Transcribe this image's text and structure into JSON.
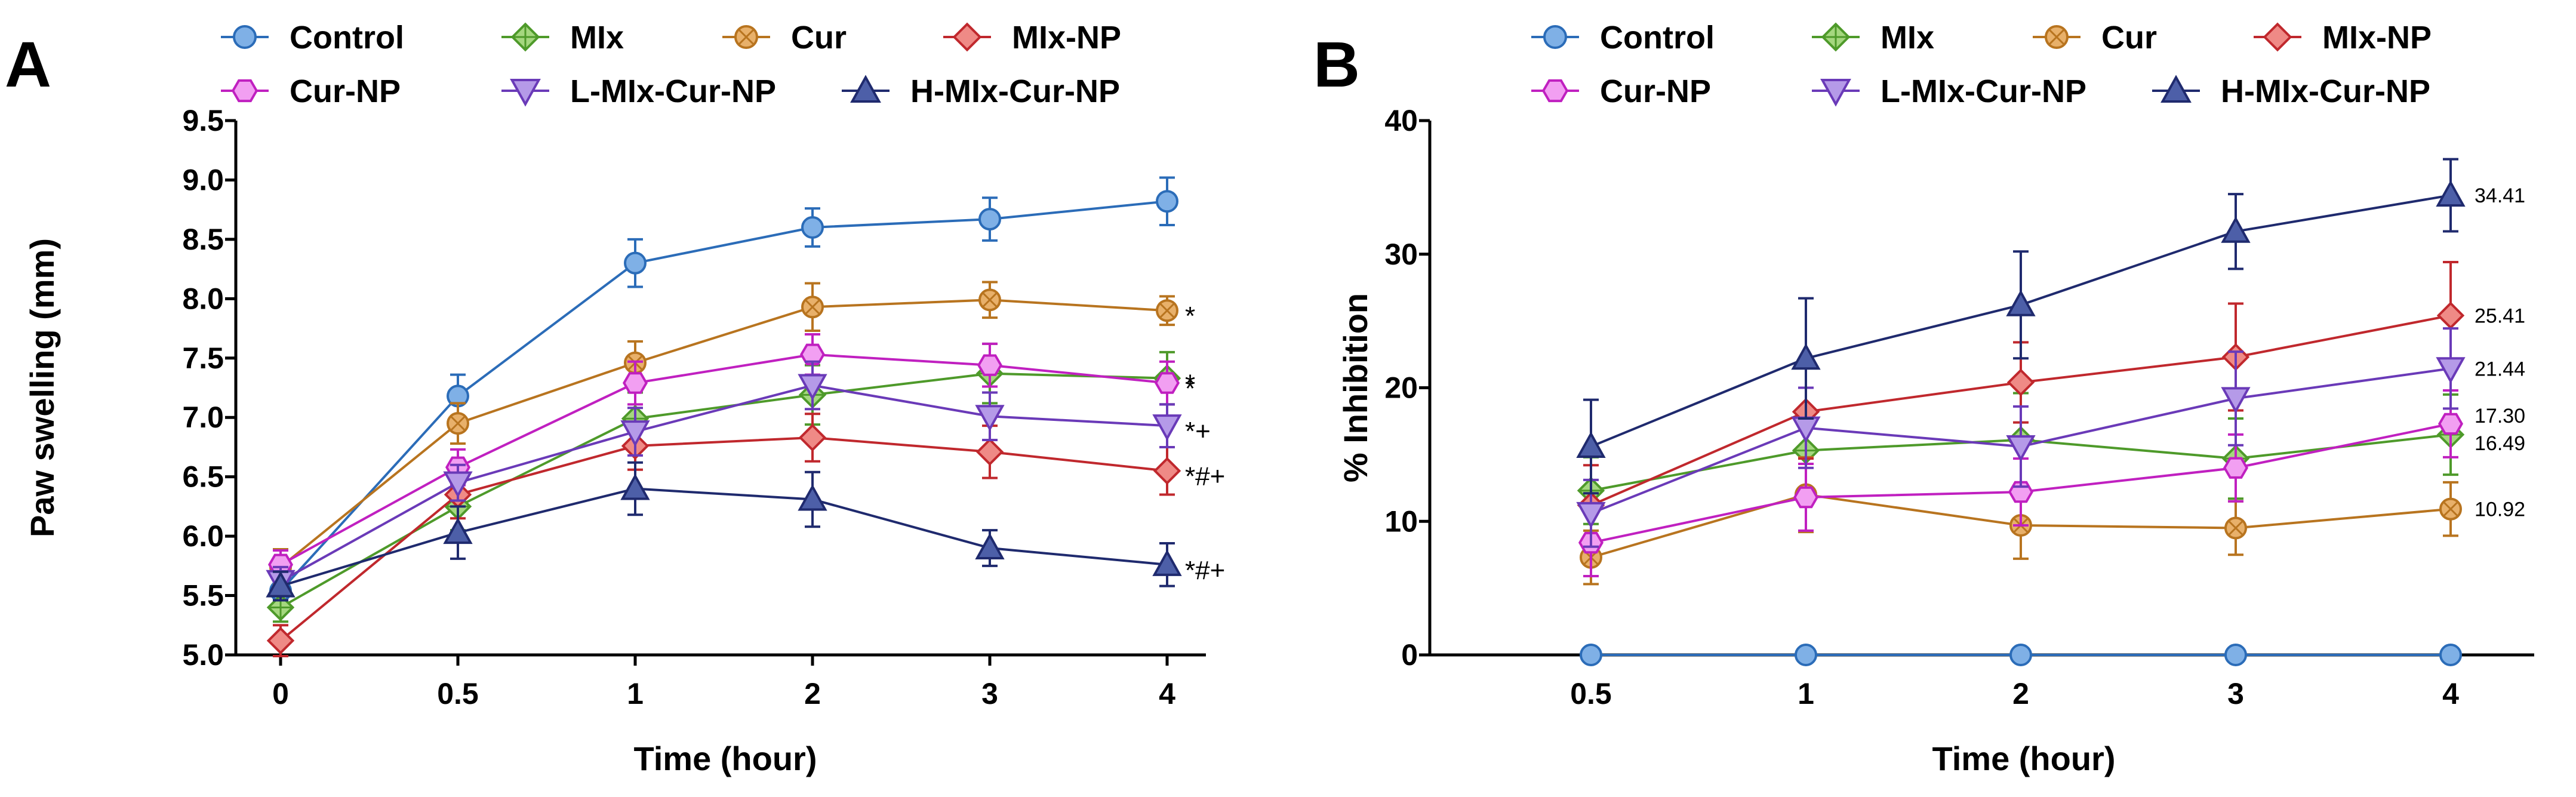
{
  "chart_data": [
    {
      "panel": "A",
      "type": "line",
      "xlabel": "Time (hour)",
      "ylabel": "Paw swelling (mm)",
      "categories": [
        "0",
        "0.5",
        "1",
        "2",
        "3",
        "4"
      ],
      "ylim": [
        5.0,
        9.5
      ],
      "yticks": [
        5.0,
        5.5,
        6.0,
        6.5,
        7.0,
        7.5,
        8.0,
        8.5,
        9.0,
        9.5
      ],
      "ytick_labels": [
        "5.0",
        "5.5",
        "6.0",
        "6.5",
        "7.0",
        "7.5",
        "8.0",
        "8.5",
        "9.0",
        "9.5"
      ],
      "legend": [
        "Control",
        "MIx",
        "Cur",
        "MIx-NP",
        "Cur-NP",
        "L-MIx-Cur-NP",
        "H-MIx-Cur-NP"
      ],
      "series": [
        {
          "name": "Control",
          "marker": "circle",
          "color": "#2b6cb8",
          "fill": "#7fb0e6",
          "values": [
            5.54,
            7.18,
            8.3,
            8.6,
            8.67,
            8.82
          ],
          "errors": [
            0.15,
            0.18,
            0.2,
            0.16,
            0.18,
            0.2
          ]
        },
        {
          "name": "MIx",
          "marker": "diamond-plus",
          "color": "#4e9a2a",
          "fill": "#a5d77f",
          "values": [
            5.4,
            6.25,
            6.99,
            7.19,
            7.37,
            7.33
          ],
          "errors": [
            0.12,
            0.2,
            0.22,
            0.25,
            0.25,
            0.22
          ]
        },
        {
          "name": "Cur",
          "marker": "circle-x",
          "color": "#b8741f",
          "fill": "#e8b06a",
          "values": [
            5.74,
            6.95,
            7.46,
            7.93,
            7.99,
            7.9
          ],
          "errors": [
            0.15,
            0.17,
            0.18,
            0.2,
            0.15,
            0.12
          ]
        },
        {
          "name": "MIx-NP",
          "marker": "diamond",
          "color": "#c0282d",
          "fill": "#ef8a86",
          "values": [
            5.12,
            6.35,
            6.76,
            6.83,
            6.71,
            6.55
          ],
          "errors": [
            0.13,
            0.2,
            0.2,
            0.2,
            0.22,
            0.2
          ]
        },
        {
          "name": "Cur-NP",
          "marker": "hexagon",
          "color": "#c020c0",
          "fill": "#f29ff2",
          "values": [
            5.76,
            6.58,
            7.29,
            7.53,
            7.44,
            7.29
          ],
          "errors": [
            0.12,
            0.15,
            0.18,
            0.17,
            0.18,
            0.18
          ]
        },
        {
          "name": "L-MIx-Cur-NP",
          "marker": "triangle-down",
          "color": "#6a3ab8",
          "fill": "#b59ae8",
          "values": [
            5.62,
            6.45,
            6.88,
            7.27,
            7.01,
            6.93
          ],
          "errors": [
            0.12,
            0.15,
            0.2,
            0.2,
            0.2,
            0.18
          ]
        },
        {
          "name": "H-MIx-Cur-NP",
          "marker": "triangle-up",
          "color": "#1f2a6e",
          "fill": "#4d5fa8",
          "values": [
            5.58,
            6.03,
            6.4,
            6.31,
            5.9,
            5.76
          ],
          "errors": [
            0.12,
            0.22,
            0.22,
            0.23,
            0.15,
            0.18
          ]
        }
      ],
      "annotations": [
        {
          "series": "Cur",
          "text": "*"
        },
        {
          "series": "MIx",
          "text": "*"
        },
        {
          "series": "Cur-NP",
          "text": "*"
        },
        {
          "series": "L-MIx-Cur-NP",
          "text": "*+"
        },
        {
          "series": "MIx-NP",
          "text": "*#+"
        },
        {
          "series": "H-MIx-Cur-NP",
          "text": "*#+"
        }
      ]
    },
    {
      "panel": "B",
      "type": "line",
      "xlabel": "Time (hour)",
      "ylabel": "% Inhibition",
      "categories": [
        "0.5",
        "1",
        "2",
        "3",
        "4"
      ],
      "ylim": [
        0,
        40
      ],
      "yticks": [
        0,
        10,
        20,
        30,
        40
      ],
      "ytick_labels": [
        "0",
        "10",
        "20",
        "30",
        "40"
      ],
      "legend": [
        "Control",
        "MIx",
        "Cur",
        "MIx-NP",
        "Cur-NP",
        "L-MIx-Cur-NP",
        "H-MIx-Cur-NP"
      ],
      "series": [
        {
          "name": "Control",
          "marker": "circle",
          "color": "#2b6cb8",
          "fill": "#7fb0e6",
          "values": [
            0,
            0,
            0,
            0,
            0
          ],
          "errors": [
            0,
            0,
            0,
            0,
            0
          ]
        },
        {
          "name": "MIx",
          "marker": "diamond-plus",
          "color": "#4e9a2a",
          "fill": "#a5d77f",
          "values": [
            12.3,
            15.3,
            16.1,
            14.7,
            16.49
          ],
          "errors": [
            2.5,
            3.0,
            3.5,
            3.0,
            3.0
          ]
        },
        {
          "name": "Cur",
          "marker": "circle-x",
          "color": "#b8741f",
          "fill": "#e8b06a",
          "values": [
            7.3,
            12.0,
            9.7,
            9.5,
            10.92
          ],
          "errors": [
            2.0,
            2.8,
            2.5,
            2.0,
            2.0
          ]
        },
        {
          "name": "MIx-NP",
          "marker": "diamond",
          "color": "#c0282d",
          "fill": "#ef8a86",
          "values": [
            11.2,
            18.2,
            20.4,
            22.3,
            25.41
          ],
          "errors": [
            3.0,
            3.5,
            3.0,
            4.0,
            4.0
          ]
        },
        {
          "name": "Cur-NP",
          "marker": "hexagon",
          "color": "#c020c0",
          "fill": "#f29ff2",
          "values": [
            8.4,
            11.8,
            12.2,
            14.0,
            17.3
          ],
          "errors": [
            2.5,
            2.5,
            2.5,
            2.5,
            2.5
          ]
        },
        {
          "name": "L-MIx-Cur-NP",
          "marker": "triangle-down",
          "color": "#6a3ab8",
          "fill": "#b59ae8",
          "values": [
            10.6,
            17.0,
            15.6,
            19.2,
            21.44
          ],
          "errors": [
            2.5,
            3.0,
            3.0,
            3.5,
            3.0
          ]
        },
        {
          "name": "H-MIx-Cur-NP",
          "marker": "triangle-up",
          "color": "#1f2a6e",
          "fill": "#4d5fa8",
          "values": [
            15.6,
            22.2,
            26.2,
            31.7,
            34.41
          ],
          "errors": [
            3.5,
            4.5,
            4.0,
            2.8,
            2.7
          ]
        }
      ],
      "end_labels": [
        {
          "series": "H-MIx-Cur-NP",
          "text": "34.41"
        },
        {
          "series": "MIx-NP",
          "text": "25.41"
        },
        {
          "series": "L-MIx-Cur-NP",
          "text": "21.44"
        },
        {
          "series": "Cur-NP",
          "text": "17.30"
        },
        {
          "series": "MIx",
          "text": "16.49"
        },
        {
          "series": "Cur",
          "text": "10.92"
        }
      ]
    }
  ]
}
